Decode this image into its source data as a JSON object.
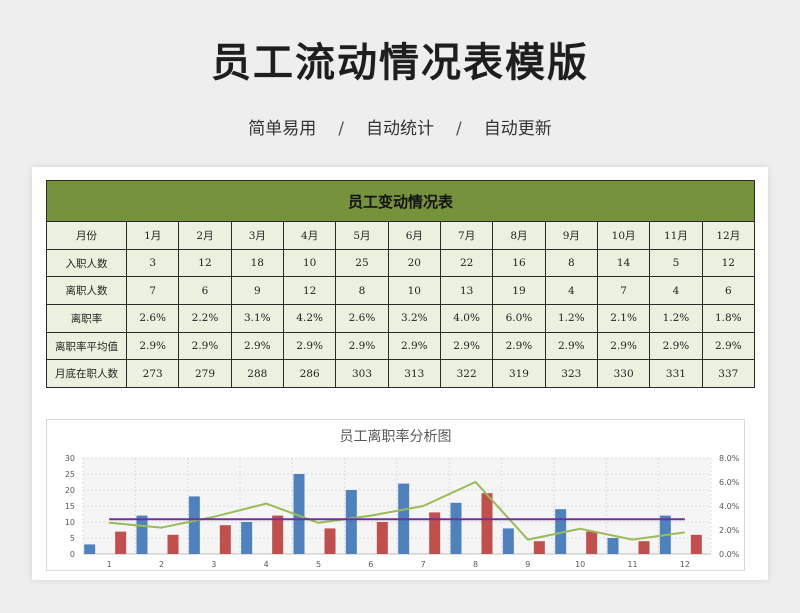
{
  "header": {
    "title": "员工流动情况表模版",
    "tags": [
      "简单易用",
      "自动统计",
      "自动更新"
    ],
    "separator": "/"
  },
  "table": {
    "title": "员工变动情况表",
    "month_label": "月份",
    "months": [
      "1月",
      "2月",
      "3月",
      "4月",
      "5月",
      "6月",
      "7月",
      "8月",
      "9月",
      "10月",
      "11月",
      "12月"
    ],
    "rows": [
      {
        "label": "入职人数",
        "values": [
          "3",
          "12",
          "18",
          "10",
          "25",
          "20",
          "22",
          "16",
          "8",
          "14",
          "5",
          "12"
        ]
      },
      {
        "label": "离职人数",
        "values": [
          "7",
          "6",
          "9",
          "12",
          "8",
          "10",
          "13",
          "19",
          "4",
          "7",
          "4",
          "6"
        ]
      },
      {
        "label": "离职率",
        "values": [
          "2.6%",
          "2.2%",
          "3.1%",
          "4.2%",
          "2.6%",
          "3.2%",
          "4.0%",
          "6.0%",
          "1.2%",
          "2.1%",
          "1.2%",
          "1.8%"
        ]
      },
      {
        "label": "离职率平均值",
        "values": [
          "2.9%",
          "2.9%",
          "2.9%",
          "2.9%",
          "2.9%",
          "2.9%",
          "2.9%",
          "2.9%",
          "2.9%",
          "2.9%",
          "2.9%",
          "2.9%"
        ]
      },
      {
        "label": "月底在职人数",
        "values": [
          "273",
          "279",
          "288",
          "286",
          "303",
          "313",
          "322",
          "319",
          "323",
          "330",
          "331",
          "337"
        ]
      }
    ]
  },
  "chart_data": {
    "type": "bar",
    "title": "员工离职率分析图",
    "categories": [
      "1",
      "2",
      "3",
      "4",
      "5",
      "6",
      "7",
      "8",
      "9",
      "10",
      "11",
      "12"
    ],
    "series": [
      {
        "values": [
          3,
          12,
          18,
          10,
          25,
          20,
          22,
          16,
          8,
          14,
          5,
          12
        ],
        "color": "#4f81bd",
        "kind": "bar"
      },
      {
        "values": [
          7,
          6,
          9,
          12,
          8,
          10,
          13,
          19,
          4,
          7,
          4,
          6
        ],
        "color": "#c0504d",
        "kind": "bar"
      },
      {
        "values": [
          2.6,
          2.2,
          3.1,
          4.2,
          2.6,
          3.2,
          4.0,
          6.0,
          1.2,
          2.1,
          1.2,
          1.8
        ],
        "color": "#9bbb59",
        "kind": "line",
        "axis": "right"
      },
      {
        "values": [
          2.9,
          2.9,
          2.9,
          2.9,
          2.9,
          2.9,
          2.9,
          2.9,
          2.9,
          2.9,
          2.9,
          2.9
        ],
        "color": "#7030a0",
        "kind": "line",
        "axis": "right"
      }
    ],
    "y_left": {
      "min": 0,
      "max": 30,
      "ticks": [
        "0",
        "5",
        "10",
        "15",
        "20",
        "25",
        "30"
      ]
    },
    "y_right": {
      "min": 0,
      "max": 8,
      "ticks": [
        "0.0%",
        "2.0%",
        "4.0%",
        "6.0%",
        "8.0%"
      ]
    },
    "grid": true
  }
}
